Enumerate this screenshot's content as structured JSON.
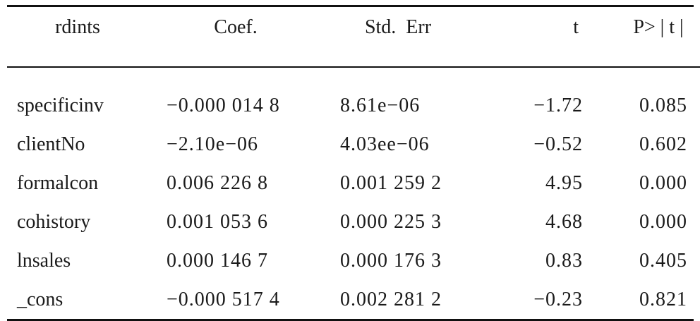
{
  "table": {
    "headers": [
      "rdints",
      "Coef.",
      "Std.  Err",
      "t",
      "P> | t |"
    ],
    "rows": [
      [
        "specificinv",
        "−0.000 014 8",
        "8.61e−06",
        "−1.72",
        "0.085"
      ],
      [
        "clientNo",
        "−2.10e−06",
        "4.03ee−06",
        "−0.52",
        "0.602"
      ],
      [
        "formalcon",
        "0.006 226 8",
        "0.001 259 2",
        "4.95",
        "0.000"
      ],
      [
        "cohistory",
        "0.001 053 6",
        "0.000 225 3",
        "4.68",
        "0.000"
      ],
      [
        "lnsales",
        "0.000 146 7",
        "0.000 176 3",
        "0.83",
        "0.405"
      ],
      [
        "_cons",
        "−0.000 517 4",
        "0.002 281 2",
        "−0.23",
        "0.821"
      ]
    ]
  }
}
